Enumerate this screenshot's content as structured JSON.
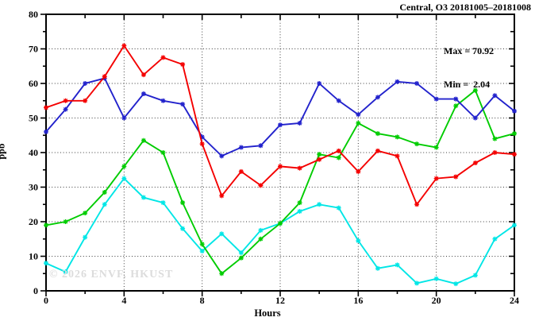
{
  "title": "Central, O3 20181005–20181008",
  "legend": {
    "max_label": "Max = 70.92",
    "min_label": "Min =  2.04"
  },
  "watermark": "© 2026 ENVF, HKUST",
  "chart_data": {
    "type": "line",
    "title": "Central, O3 20181005–20181008",
    "station": "Central",
    "pollutant": "O3",
    "date_range": "20181005-20181008",
    "xlabel": "Hours",
    "ylabel": "ppb",
    "xlim": [
      0,
      24
    ],
    "ylim": [
      0,
      80
    ],
    "x_ticks": [
      0,
      4,
      8,
      12,
      16,
      20,
      24
    ],
    "x_minor_step": 2,
    "y_ticks": [
      0,
      10,
      20,
      30,
      40,
      50,
      60,
      70,
      80
    ],
    "y_minor_step": 5,
    "grid": "dotted",
    "legend_position": "top-right",
    "stats": {
      "max": 70.92,
      "min": 2.04
    },
    "x": [
      0,
      1,
      2,
      3,
      4,
      5,
      6,
      7,
      8,
      9,
      10,
      11,
      12,
      13,
      14,
      15,
      16,
      17,
      18,
      19,
      20,
      21,
      22,
      23,
      24
    ],
    "series": [
      {
        "name": "day-cyan",
        "color": "#00e6e6",
        "values": [
          8,
          5.5,
          15.5,
          25,
          32.5,
          27,
          25.5,
          18,
          11.5,
          16.5,
          11,
          17.5,
          19.5,
          23,
          25,
          24,
          14.5,
          6.5,
          7.5,
          2.2,
          3.5,
          2.04,
          4.5,
          15,
          19
        ]
      },
      {
        "name": "day-green",
        "color": "#00cc00",
        "values": [
          19,
          20,
          22.5,
          28.5,
          36,
          43.5,
          40,
          25.5,
          13.5,
          5,
          9.5,
          15,
          19.5,
          25.5,
          39.5,
          38.5,
          48.5,
          45.5,
          44.5,
          42.5,
          41.5,
          53.5,
          58,
          44,
          45.5
        ]
      },
      {
        "name": "day-blue",
        "color": "#2222cc",
        "values": [
          46,
          52.5,
          60,
          61.5,
          50,
          57,
          55,
          54,
          44.5,
          39,
          41.5,
          42,
          48,
          48.5,
          60,
          55,
          51,
          56,
          60.5,
          60,
          55.5,
          55.5,
          50,
          56.5,
          52
        ]
      },
      {
        "name": "day-red",
        "color": "#f40000",
        "values": [
          53,
          55,
          55,
          62,
          70.92,
          62.5,
          67.5,
          65.5,
          42.5,
          27.5,
          34.5,
          30.5,
          36,
          35.5,
          38,
          40.5,
          34.5,
          40.5,
          39,
          25,
          32.5,
          33,
          37,
          40,
          39.5
        ]
      }
    ]
  }
}
